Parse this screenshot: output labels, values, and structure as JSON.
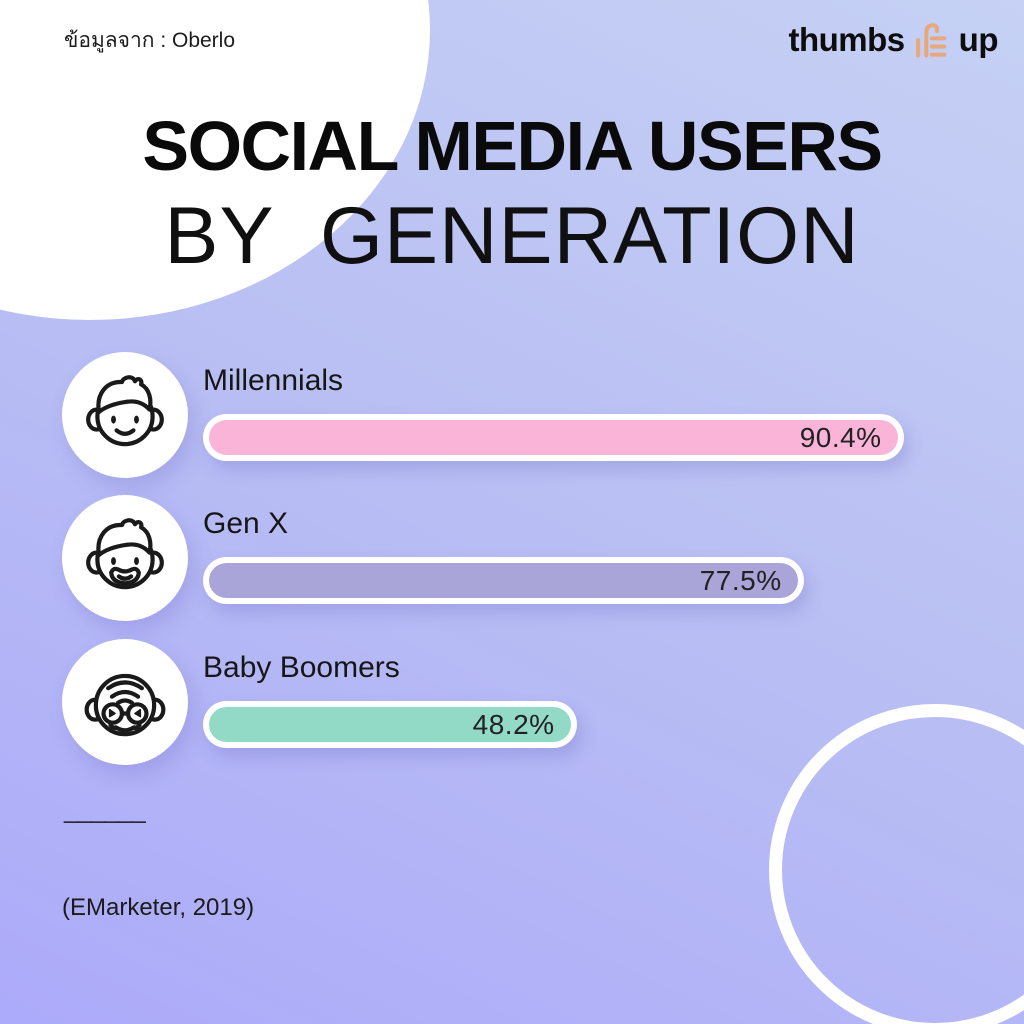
{
  "header": {
    "source_label": "ข้อมูลจาก : Oberlo",
    "brand_word_1": "thumbs",
    "brand_word_2": "up"
  },
  "title": {
    "line1": "SOCIAL MEDIA USERS",
    "line2": "BY  GENERATION"
  },
  "footer": {
    "divider": "______",
    "citation": "(EMarketer, 2019)"
  },
  "colors": {
    "background_top": "#c6d1f5",
    "background_bottom": "#acaafa",
    "decor_white": "#ffffff",
    "brand_icon": "#E8A87E",
    "text": "#111111"
  },
  "chart_data": {
    "type": "bar",
    "orientation": "horizontal",
    "title": "SOCIAL MEDIA USERS BY GENERATION",
    "source": "Oberlo",
    "citation": "(EMarketer, 2019)",
    "xlim": [
      0,
      100
    ],
    "unit": "%",
    "grid": false,
    "legend": false,
    "categories": [
      "Millennials",
      "Gen X",
      "Baby Boomers"
    ],
    "values": [
      90.4,
      77.5,
      48.2
    ],
    "value_labels": [
      "90.4%",
      "77.5%",
      "48.2%"
    ],
    "bar_colors": [
      "#F9B4D8",
      "#A9A5D8",
      "#93DAC6"
    ],
    "icons": [
      "young-person-face-icon",
      "bearded-man-face-icon",
      "elderly-person-face-icon"
    ]
  }
}
